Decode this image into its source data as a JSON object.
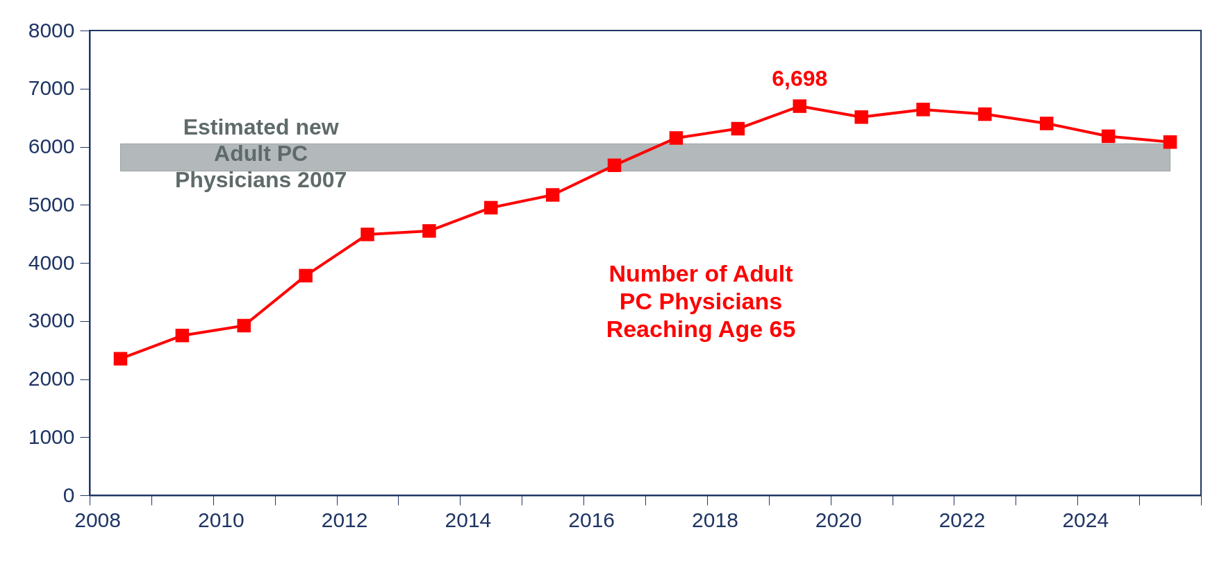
{
  "chart_data": {
    "type": "line",
    "categories": [
      "2008",
      null,
      "2010",
      null,
      "2012",
      null,
      "2014",
      null,
      "2016",
      null,
      "2018",
      null,
      "2020",
      null,
      "2022",
      null,
      "2024",
      null
    ],
    "series": [
      {
        "name": "Number of Adult PC Physicians Reaching Age 65",
        "color": "#ff0000",
        "values": [
          2350,
          2750,
          2920,
          3780,
          4490,
          4550,
          4950,
          5170,
          5680,
          6150,
          6310,
          6698,
          6510,
          6640,
          6560,
          6400,
          6180,
          6080
        ],
        "value_labels": [
          null,
          null,
          null,
          null,
          null,
          null,
          null,
          null,
          null,
          null,
          null,
          "6,698",
          null,
          null,
          null,
          null,
          null,
          null
        ]
      }
    ],
    "ylim": [
      0,
      8000
    ],
    "yticks": [
      0,
      1000,
      2000,
      3000,
      4000,
      5000,
      6000,
      7000,
      8000
    ],
    "bands": [
      {
        "axis": "y",
        "from": 5580,
        "to": 6050,
        "label": "Estimated new Adult PC Physicians 2007",
        "color": "#b3b9bb"
      }
    ],
    "marker": "square",
    "line_style": "solid",
    "grid": false
  }
}
